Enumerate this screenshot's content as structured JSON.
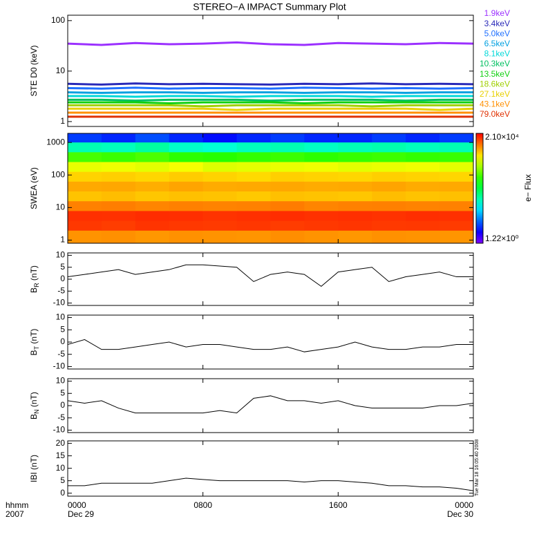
{
  "chart_data": [
    {
      "type": "line",
      "title": "STEREO−A IMPACT Summary Plot",
      "ylabel": "STE D0 (keV)",
      "ylog": true,
      "xlim": [
        0,
        24
      ],
      "ylim": [
        0.8,
        128
      ],
      "yticks": [
        1,
        10,
        100
      ],
      "x": [
        0,
        2,
        4,
        6,
        8,
        10,
        12,
        14,
        16,
        18,
        20,
        22,
        24
      ],
      "series": [
        {
          "name": "1.9keV",
          "color": "#9b30ff",
          "values": [
            35,
            33,
            36,
            34,
            35,
            37,
            34,
            33,
            36,
            35,
            34,
            36,
            35
          ]
        },
        {
          "name": "3.4keV",
          "color": "#2828b8",
          "values": [
            5.6,
            5.4,
            5.7,
            5.5,
            5.6,
            5.5,
            5.4,
            5.6,
            5.5,
            5.7,
            5.5,
            5.6,
            5.5
          ]
        },
        {
          "name": "5.0keV",
          "color": "#1e6fff",
          "values": [
            4.6,
            4.5,
            4.7,
            4.5,
            4.6,
            4.6,
            4.5,
            4.7,
            4.6,
            4.5,
            4.6,
            4.5,
            4.6
          ]
        },
        {
          "name": "6.5keV",
          "color": "#00a0e0",
          "values": [
            3.8,
            3.7,
            3.8,
            3.8,
            3.7,
            3.8,
            3.8,
            3.7,
            3.8,
            3.8,
            3.7,
            3.8,
            3.8
          ]
        },
        {
          "name": "8.1keV",
          "color": "#00d8d8",
          "values": [
            3.2,
            3.2,
            3.1,
            3.2,
            3.2,
            3.1,
            3.2,
            3.2,
            3.2,
            3.1,
            3.2,
            3.2,
            3.2
          ]
        },
        {
          "name": "10.3keV",
          "color": "#00c060",
          "values": [
            2.7,
            2.7,
            2.6,
            2.7,
            2.7,
            2.7,
            2.6,
            2.7,
            2.7,
            2.7,
            2.6,
            2.7,
            2.7
          ]
        },
        {
          "name": "13.5keV",
          "color": "#10d010",
          "values": [
            2.4,
            2.4,
            2.4,
            2.3,
            2.4,
            2.4,
            2.4,
            2.3,
            2.4,
            2.4,
            2.4,
            2.4,
            2.4
          ]
        },
        {
          "name": "18.6keV",
          "color": "#a0d000",
          "values": [
            2.1,
            2.1,
            2.1,
            2.1,
            2.0,
            2.1,
            2.1,
            2.1,
            2.1,
            2.0,
            2.1,
            2.1,
            2.1
          ]
        },
        {
          "name": "27.1keV",
          "color": "#e8d000",
          "values": [
            1.8,
            1.8,
            1.8,
            1.8,
            1.8,
            1.7,
            1.8,
            1.8,
            1.8,
            1.8,
            1.8,
            1.7,
            1.8
          ]
        },
        {
          "name": "43.1keV",
          "color": "#ff9000",
          "values": [
            1.5,
            1.5,
            1.5,
            1.5,
            1.5,
            1.5,
            1.5,
            1.5,
            1.5,
            1.5,
            1.5,
            1.5,
            1.5
          ]
        },
        {
          "name": "79.0keV",
          "color": "#e03000",
          "values": [
            1.25,
            1.25,
            1.25,
            1.25,
            1.25,
            1.25,
            1.25,
            1.25,
            1.25,
            1.25,
            1.25,
            1.25,
            1.25
          ]
        }
      ]
    },
    {
      "type": "heatmap",
      "ylabel": "SWEA (eV)",
      "ylog": true,
      "xlim": [
        0,
        24
      ],
      "ylim": [
        0.8,
        1900
      ],
      "yticks": [
        1,
        10,
        100,
        1000
      ],
      "xbins": [
        0,
        2,
        4,
        6,
        8,
        10,
        12,
        14,
        16,
        18,
        20,
        22,
        24
      ],
      "ybins": [
        0.8,
        2,
        4,
        8,
        16,
        32,
        64,
        128,
        256,
        512,
        1024,
        1900
      ],
      "zlim": [
        1.22,
        21000
      ],
      "zlabel": "e− Flux",
      "zticks": [
        {
          "value": 21000,
          "label": "2.10×10⁴"
        },
        {
          "value": 1.22,
          "label": "1.22×10⁰"
        }
      ],
      "z": [
        [
          6000,
          6200,
          5800,
          6100,
          6000,
          5900,
          6300,
          6000,
          5800,
          6100,
          6000,
          5900
        ],
        [
          13000,
          12500,
          13500,
          13000,
          12800,
          13200,
          12600,
          13000,
          13400,
          12900,
          13100,
          12700
        ],
        [
          14000,
          13800,
          14500,
          14200,
          13600,
          14000,
          14300,
          13900,
          14100,
          13700,
          14200,
          14000
        ],
        [
          7000,
          7200,
          6800,
          7100,
          6900,
          7000,
          7300,
          6800,
          7000,
          7100,
          6900,
          7000
        ],
        [
          4000,
          4200,
          3900,
          4100,
          4000,
          3800,
          4100,
          4000,
          3900,
          4200,
          4000,
          4100
        ],
        [
          5000,
          5100,
          4800,
          5200,
          4900,
          5000,
          5100,
          4900,
          5000,
          5200,
          4900,
          5000
        ],
        [
          3500,
          3600,
          3400,
          3700,
          3500,
          3300,
          3600,
          3500,
          3400,
          3600,
          3500,
          3400
        ],
        [
          2000,
          2100,
          1900,
          2200,
          1800,
          1900,
          2000,
          2100,
          1900,
          2000,
          2100,
          1900
        ],
        [
          500,
          450,
          520,
          400,
          380,
          420,
          450,
          400,
          430,
          460,
          420,
          440
        ],
        [
          60,
          55,
          70,
          50,
          45,
          55,
          60,
          52,
          58,
          62,
          55,
          60
        ],
        [
          6,
          5,
          7,
          5,
          4,
          5,
          6,
          5,
          5,
          6,
          5,
          6
        ]
      ]
    },
    {
      "type": "line",
      "ylabel": {
        "base": "B",
        "sub": "R",
        "unit": " (nT)"
      },
      "xlim": [
        0,
        24
      ],
      "ylim": [
        -11,
        11
      ],
      "yticks": [
        -10,
        -5,
        0,
        5,
        10
      ],
      "x": [
        0,
        1,
        2,
        3,
        4,
        5,
        6,
        7,
        8,
        9,
        10,
        11,
        12,
        13,
        14,
        15,
        16,
        17,
        18,
        19,
        20,
        21,
        22,
        23,
        24
      ],
      "series": [
        {
          "color": "#000000",
          "values": [
            1,
            2,
            3,
            4,
            2,
            3,
            4,
            6,
            6,
            5.5,
            5,
            -1,
            2,
            3,
            2,
            -3,
            3,
            4,
            5,
            -1,
            1,
            2,
            3,
            1,
            1
          ]
        }
      ]
    },
    {
      "type": "line",
      "ylabel": {
        "base": "B",
        "sub": "T",
        "unit": " (nT)"
      },
      "xlim": [
        0,
        24
      ],
      "ylim": [
        -11,
        11
      ],
      "yticks": [
        -10,
        -5,
        0,
        5,
        10
      ],
      "x": [
        0,
        1,
        2,
        3,
        4,
        5,
        6,
        7,
        8,
        9,
        10,
        11,
        12,
        13,
        14,
        15,
        16,
        17,
        18,
        19,
        20,
        21,
        22,
        23,
        24
      ],
      "series": [
        {
          "color": "#000000",
          "values": [
            -1,
            1,
            -3,
            -3,
            -2,
            -1,
            0,
            -2,
            -1,
            -1,
            -2,
            -3,
            -3,
            -2,
            -4,
            -3,
            -2,
            0,
            -2,
            -3,
            -3,
            -2,
            -2,
            -1,
            -1
          ]
        }
      ]
    },
    {
      "type": "line",
      "ylabel": {
        "base": "B",
        "sub": "N",
        "unit": " (nT)"
      },
      "xlim": [
        0,
        24
      ],
      "ylim": [
        -11,
        11
      ],
      "yticks": [
        -10,
        -5,
        0,
        5,
        10
      ],
      "x": [
        0,
        1,
        2,
        3,
        4,
        5,
        6,
        7,
        8,
        9,
        10,
        11,
        12,
        13,
        14,
        15,
        16,
        17,
        18,
        19,
        20,
        21,
        22,
        23,
        24
      ],
      "series": [
        {
          "color": "#000000",
          "values": [
            2,
            1,
            2,
            -1,
            -3,
            -3,
            -3,
            -3,
            -3,
            -2,
            -3,
            3,
            4,
            2,
            2,
            1,
            2,
            0,
            -1,
            -1,
            -1,
            -1,
            0,
            0,
            1
          ]
        }
      ]
    },
    {
      "type": "line",
      "ylabel": "IBI (nT)",
      "xlim": [
        0,
        24
      ],
      "ylim": [
        -1.2,
        21
      ],
      "yticks": [
        0,
        5,
        10,
        15,
        20
      ],
      "x": [
        0,
        1,
        2,
        3,
        4,
        5,
        6,
        7,
        8,
        9,
        10,
        11,
        12,
        13,
        14,
        15,
        16,
        17,
        18,
        19,
        20,
        21,
        22,
        23,
        24
      ],
      "series": [
        {
          "color": "#000000",
          "values": [
            3,
            3,
            4,
            4,
            4,
            4,
            5,
            6,
            5.5,
            5,
            5,
            5,
            5,
            5,
            4.5,
            5,
            5,
            4.5,
            4,
            3,
            3,
            2.5,
            2.5,
            2,
            1
          ]
        }
      ],
      "xticks": [
        {
          "value": 0,
          "label": "0000"
        },
        {
          "value": 8,
          "label": "0800"
        },
        {
          "value": 16,
          "label": "1600"
        },
        {
          "value": 24,
          "label": "0000"
        }
      ],
      "xlabel": "hhmm",
      "year": "2007",
      "date_start": "Dec 29",
      "date_end": "Dec 30",
      "annotation": "Tue Mar 18 16:05:40 2008"
    }
  ]
}
